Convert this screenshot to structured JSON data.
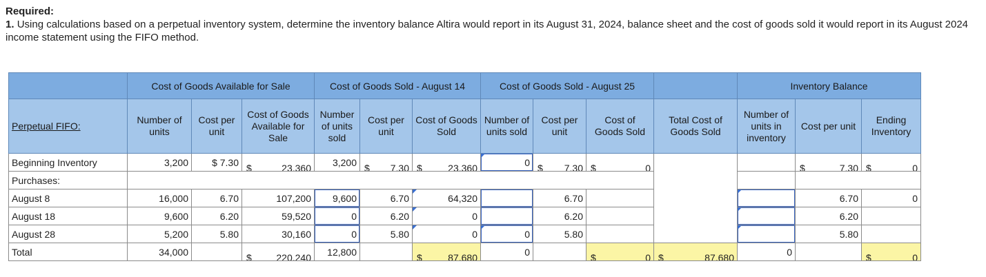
{
  "required": {
    "heading": "Required:",
    "number": "1.",
    "text": "Using calculations based on a perpetual inventory system, determine the inventory balance Altira would report in its August 31, 2024, balance sheet and the cost of goods sold it would report in its August 2024 income statement using the FIFO method."
  },
  "table": {
    "title": "Perpetual FIFO:",
    "group_headers": {
      "available": "Cost of Goods Available for Sale",
      "cogs_aug14": "Cost of Goods Sold - August 14",
      "cogs_aug25": "Cost of Goods Sold - August 25",
      "inventory_balance": "Inventory Balance"
    },
    "col_headers": {
      "avail_units": "Number of units",
      "avail_cost": "Cost per unit",
      "avail_total": "Cost of Goods Available for Sale",
      "a14_units": "Number of units sold",
      "a14_cost": "Cost per unit",
      "a14_cogs": "Cost of Goods Sold",
      "a25_units": "Number of units sold",
      "a25_cost": "Cost per unit",
      "a25_cogs": "Cost of Goods Sold",
      "total_cogs": "Total Cost of Goods Sold",
      "inv_units": "Number of units in inventory",
      "inv_cost": "Cost per unit",
      "inv_end": "Ending Inventory"
    },
    "currency": "$",
    "beginning": {
      "label": "Beginning Inventory",
      "avail_units": "3,200",
      "avail_cost": "$ 7.30",
      "avail_total": "23,360",
      "a14_units": "3,200",
      "a14_cost": "7.30",
      "a14_cogs": "23,360",
      "a25_units": "0",
      "a25_cost": "7.30",
      "a25_cogs": "0",
      "inv_cost": "7.30",
      "inv_end": "0"
    },
    "purchases_label": "Purchases:",
    "rows": [
      {
        "label": "August 8",
        "avail_units": "16,000",
        "avail_cost": "6.70",
        "avail_total": "107,200",
        "a14_units": "9,600",
        "a14_cost": "6.70",
        "a14_cogs": "64,320",
        "a25_units": "",
        "a25_cost": "6.70",
        "a25_cogs": "",
        "inv_units": "",
        "inv_cost": "6.70",
        "inv_end": "0"
      },
      {
        "label": "August 18",
        "avail_units": "9,600",
        "avail_cost": "6.20",
        "avail_total": "59,520",
        "a14_units": "0",
        "a14_cost": "6.20",
        "a14_cogs": "0",
        "a25_units": "",
        "a25_cost": "6.20",
        "a25_cogs": "",
        "inv_units": "",
        "inv_cost": "6.20",
        "inv_end": ""
      },
      {
        "label": "August 28",
        "avail_units": "5,200",
        "avail_cost": "5.80",
        "avail_total": "30,160",
        "a14_units": "0",
        "a14_cost": "5.80",
        "a14_cogs": "0",
        "a25_units": "0",
        "a25_cost": "5.80",
        "a25_cogs": "",
        "inv_units": "",
        "inv_cost": "5.80",
        "inv_end": ""
      }
    ],
    "total": {
      "label": "Total",
      "avail_units": "34,000",
      "avail_total": "220,240",
      "a14_units": "12,800",
      "a14_cogs": "87,680",
      "a25_units": "0",
      "a25_cogs": "0",
      "total_cogs": "87,680",
      "inv_units": "0",
      "inv_end": "0"
    }
  },
  "colors": {
    "header_dark": "#7dace0",
    "header_light": "#a4c6ea",
    "highlight": "#fbf5a5",
    "input_border": "#3a66c4"
  }
}
